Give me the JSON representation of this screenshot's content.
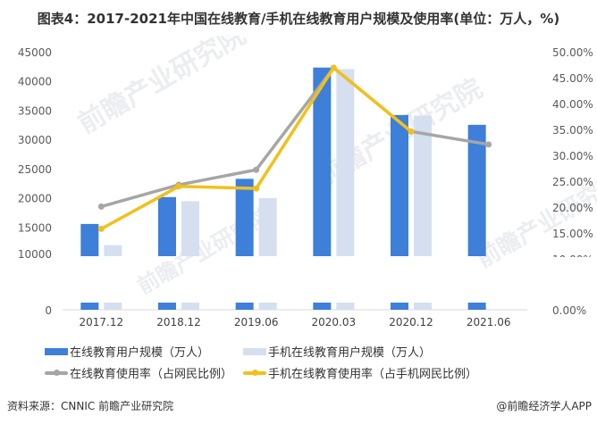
{
  "title": "图表4：2017-2021年中国在线教育/手机在线教育用户规模及使用率(单位：万人，%)",
  "colors": {
    "online_users": "#3d7fd9",
    "mobile_users": "#d5dff0",
    "online_rate": "#a6a6a6",
    "mobile_rate": "#f2c01c"
  },
  "legend": {
    "online_users": "在线教育用户规模（万人）",
    "mobile_users": "手机在线教育用户规模（万人）",
    "online_rate": "在线教育使用率（占网民比例）",
    "mobile_rate": "手机在线教育使用率（占手机网民比例）"
  },
  "footer": {
    "source": "资料来源：CNNIC 前瞻产业研究院",
    "credit": "@前瞻经济学人APP"
  },
  "watermark": "前瞻产业研究院",
  "chart_data": {
    "type": "bar",
    "title": "图表4：2017-2021年中国在线教育/手机在线教育用户规模及使用率(单位：万人，%)",
    "categories": [
      "2017.12",
      "2018.12",
      "2019.06",
      "2020.03",
      "2020.12",
      "2021.06"
    ],
    "series": [
      {
        "name": "在线教育用户规模（万人）",
        "type": "bar",
        "axis": "left",
        "values": [
          15518,
          20123,
          23246,
          42296,
          34171,
          32493
        ]
      },
      {
        "name": "手机在线教育用户规模（万人）",
        "type": "bar",
        "axis": "left",
        "values": [
          11890,
          19416,
          19932,
          42023,
          34073,
          null
        ]
      },
      {
        "name": "在线教育使用率（占网民比例）",
        "type": "line",
        "axis": "right",
        "values": [
          20.1,
          24.3,
          27.2,
          46.9,
          34.6,
          32.1
        ]
      },
      {
        "name": "手机在线教育使用率（占手机网民比例）",
        "type": "line",
        "axis": "right",
        "values": [
          15.8,
          24.0,
          23.6,
          46.9,
          34.6,
          null
        ]
      }
    ],
    "left_axis": {
      "ticks": [
        "0",
        "10000",
        "15000",
        "20000",
        "25000",
        "30000",
        "35000",
        "40000",
        "45000"
      ],
      "range": [
        0,
        45000
      ],
      "break": [
        0,
        10000
      ]
    },
    "right_axis": {
      "ticks": [
        "0.00%",
        "10.00%",
        "15.00%",
        "20.00%",
        "25.00%",
        "30.00%",
        "35.00%",
        "40.00%",
        "45.00%",
        "50.00%"
      ],
      "range": [
        0,
        50
      ]
    },
    "xlabel": "",
    "ylabel": "",
    "legend_position": "bottom",
    "grid": false
  }
}
